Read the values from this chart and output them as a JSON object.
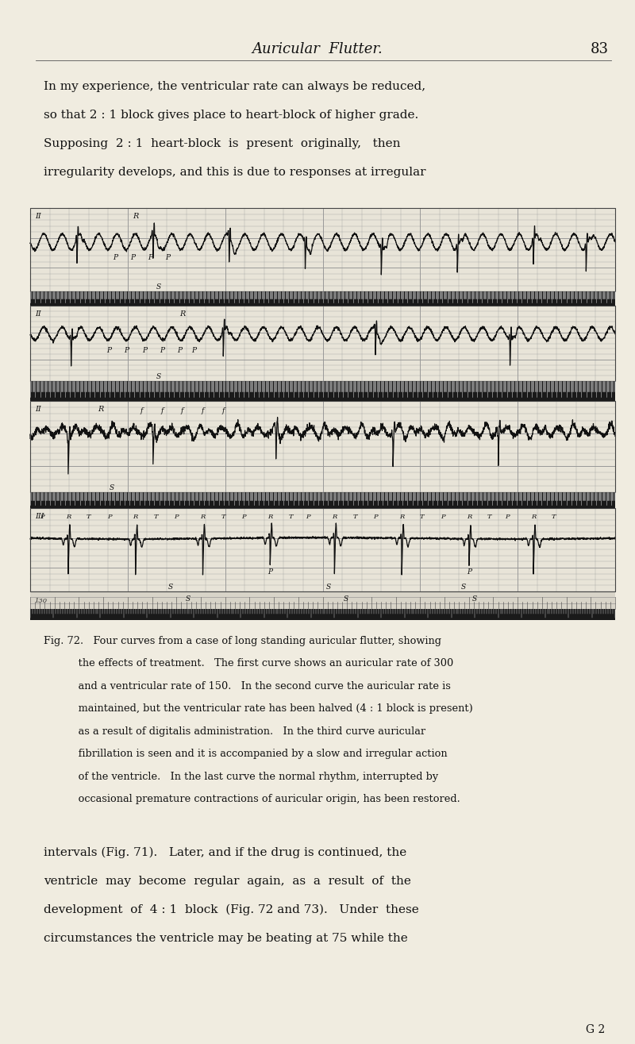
{
  "background_color": "#f0ece0",
  "page_width": 8.0,
  "page_height": 13.15,
  "header_title": "Auricular  Flutter.",
  "header_page": "83",
  "top_paragraph_lines": [
    "In my experience, the ventricular rate can always be reduced,",
    "so that 2 : 1 block gives place to heart-block of higher grade.",
    "Supposing  2 : 1  heart-block  is  present  originally,   then",
    "irregularity develops, and this is due to responses at irregular"
  ],
  "bottom_paragraph_lines": [
    "intervals (Fig. 71).   Later, and if the drug is continued, the",
    "ventricle  may  become  regular  again,  as  a  result  of  the",
    "development  of  4 : 1  block  (Fig. 72 and 73).   Under  these",
    "circumstances the ventricle may be beating at 75 while the"
  ],
  "bottom_footer": "G 2",
  "fig_caption_lines": [
    "Fig. 72.   Four curves from a case of long standing auricular flutter, showing",
    "     the effects of treatment.   The first curve shows an auricular rate of 300",
    "     and a ventricular rate of 150.   In the second curve the auricular rate is",
    "     maintained, but the ventricular rate has been halved (4 : 1 block is present)",
    "     as a result of digitalis administration.   In the third curve auricular",
    "     fibrillation is seen and it is accompanied by a slow and irregular action",
    "     of the ventricle.   In the last curve the normal rhythm, interrupted by",
    "     occasional premature contractions of auricular origin, has been restored."
  ],
  "ecg_bg": "#e8e4d8",
  "strip_colors": [
    "#c8c0b0",
    "#c8c0b0",
    "#c8c0b0",
    "#c8c0b0"
  ],
  "timing_strip_color": "#2a2a2a"
}
